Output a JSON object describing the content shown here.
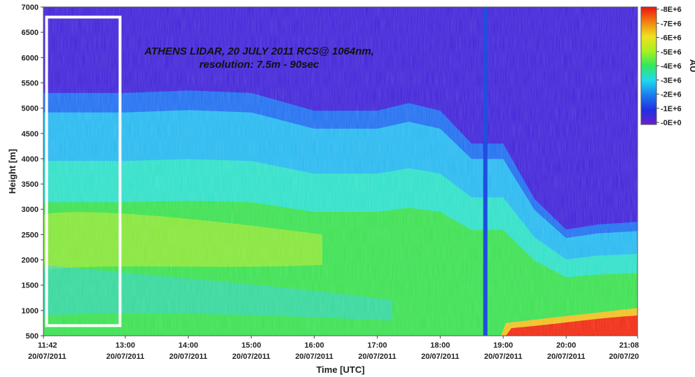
{
  "chart_data": {
    "type": "heatmap",
    "title_line1": "ATHENS LIDAR, 20 JULY 2011 RCS@ 1064nm,",
    "title_line2": "resolution: 7.5m - 90sec",
    "xlabel": "Time [UTC]",
    "ylabel": "Height [m]",
    "ylim": [
      500,
      7000
    ],
    "y_ticks": [
      "500",
      "1000",
      "1500",
      "2000",
      "2500",
      "3000",
      "3500",
      "4000",
      "4500",
      "5000",
      "5500",
      "6000",
      "6500",
      "7000"
    ],
    "x_ticks": [
      {
        "time": "11:42",
        "date": "20/07/2011"
      },
      {
        "time": "13:00",
        "date": "20/07/2011"
      },
      {
        "time": "14:00",
        "date": "20/07/2011"
      },
      {
        "time": "15:00",
        "date": "20/07/2011"
      },
      {
        "time": "16:00",
        "date": "20/07/2011"
      },
      {
        "time": "17:00",
        "date": "20/07/2011"
      },
      {
        "time": "18:00",
        "date": "20/07/2011"
      },
      {
        "time": "19:00",
        "date": "20/07/2011"
      },
      {
        "time": "20:00",
        "date": "20/07/2011"
      },
      {
        "time": "21:08",
        "date": "20/07/20"
      }
    ],
    "colorbar": {
      "label": "AU",
      "ticks": [
        "8E+6",
        "7E+6",
        "6E+6",
        "5E+6",
        "4E+6",
        "3E+6",
        "2E+6",
        "1E+6",
        "0E+0"
      ],
      "colors": [
        "#6a1fd0",
        "#2030e0",
        "#1a7cf0",
        "#20d8f0",
        "#30e860",
        "#a8f020",
        "#f0e020",
        "#f08010",
        "#f01010"
      ]
    },
    "layer_top_profile": [
      {
        "time": "11:42",
        "top_m": 5300
      },
      {
        "time": "13:00",
        "top_m": 5300
      },
      {
        "time": "14:00",
        "top_m": 5350
      },
      {
        "time": "15:00",
        "top_m": 5300
      },
      {
        "time": "16:00",
        "top_m": 4950
      },
      {
        "time": "17:00",
        "top_m": 4950
      },
      {
        "time": "17:30",
        "top_m": 5100
      },
      {
        "time": "18:00",
        "top_m": 4950
      },
      {
        "time": "18:30",
        "top_m": 4300
      },
      {
        "time": "19:00",
        "top_m": 4300
      },
      {
        "time": "19:30",
        "top_m": 3200
      },
      {
        "time": "20:00",
        "top_m": 2600
      },
      {
        "time": "20:30",
        "top_m": 2700
      },
      {
        "time": "21:08",
        "top_m": 2750
      }
    ],
    "highlight_box": {
      "time_start": "11:45",
      "time_end": "12:55",
      "height_start_m": 700,
      "height_end_m": 6800
    },
    "data_gap_time": "18:43"
  }
}
